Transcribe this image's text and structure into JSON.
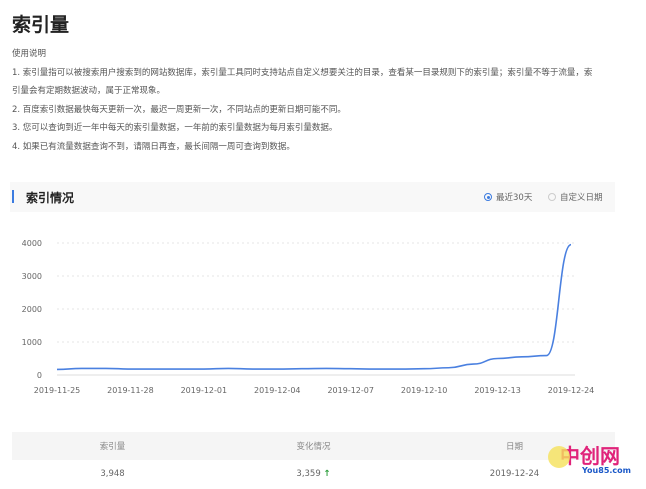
{
  "page": {
    "title": "索引量"
  },
  "help": {
    "heading": "使用说明",
    "lines": [
      "1. 索引量指可以被搜索用户搜索到的网站数据库，索引量工具同时支持站点自定义想要关注的目录，查看某一目录规则下的索引量；索引量不等于流量，索",
      "引量会有定期数据波动，属于正常现象。",
      "2. 百度索引数据最快每天更新一次，最迟一周更新一次，不同站点的更新日期可能不同。",
      "3. 您可以查询到近一年中每天的索引量数据，一年前的索引量数据为每月索引量数据。",
      "4. 如果已有流量数据查询不到，请隔日再查，最长间隔一周可查询到数据。"
    ]
  },
  "section": {
    "title": "索引情况",
    "options": [
      {
        "label": "最近30天",
        "selected": true
      },
      {
        "label": "自定义日期",
        "selected": false
      }
    ],
    "accent": "#3b7be0"
  },
  "chart_data": {
    "type": "line",
    "ylim": [
      0,
      4000
    ],
    "yticks": [
      0,
      1000,
      2000,
      3000,
      4000
    ],
    "grid": true,
    "color": "#4a80e0",
    "x": [
      "2019-11-25",
      "2019-11-26",
      "2019-11-27",
      "2019-11-28",
      "2019-11-29",
      "2019-11-30",
      "2019-12-01",
      "2019-12-02",
      "2019-12-03",
      "2019-12-04",
      "2019-12-05",
      "2019-12-06",
      "2019-12-07",
      "2019-12-08",
      "2019-12-09",
      "2019-12-10",
      "2019-12-11",
      "2019-12-12",
      "2019-12-13",
      "2019-12-14",
      "2019-12-15",
      "2019-12-24"
    ],
    "values": [
      170,
      200,
      200,
      180,
      180,
      180,
      180,
      200,
      180,
      180,
      190,
      200,
      190,
      180,
      180,
      190,
      220,
      330,
      500,
      550,
      590,
      3948
    ],
    "xticks": [
      "2019-11-25",
      "2019-11-28",
      "2019-12-01",
      "2019-12-04",
      "2019-12-07",
      "2019-12-10",
      "2019-12-13",
      "2019-12-24"
    ]
  },
  "table": {
    "headers": [
      "索引量",
      "变化情况",
      "日期"
    ],
    "row": {
      "count": "3,948",
      "change": "3,359",
      "change_icon": "arrow-up-icon",
      "date": "2019-12-24"
    }
  },
  "watermark": {
    "text": "中创网",
    "sub": "You85.com"
  }
}
